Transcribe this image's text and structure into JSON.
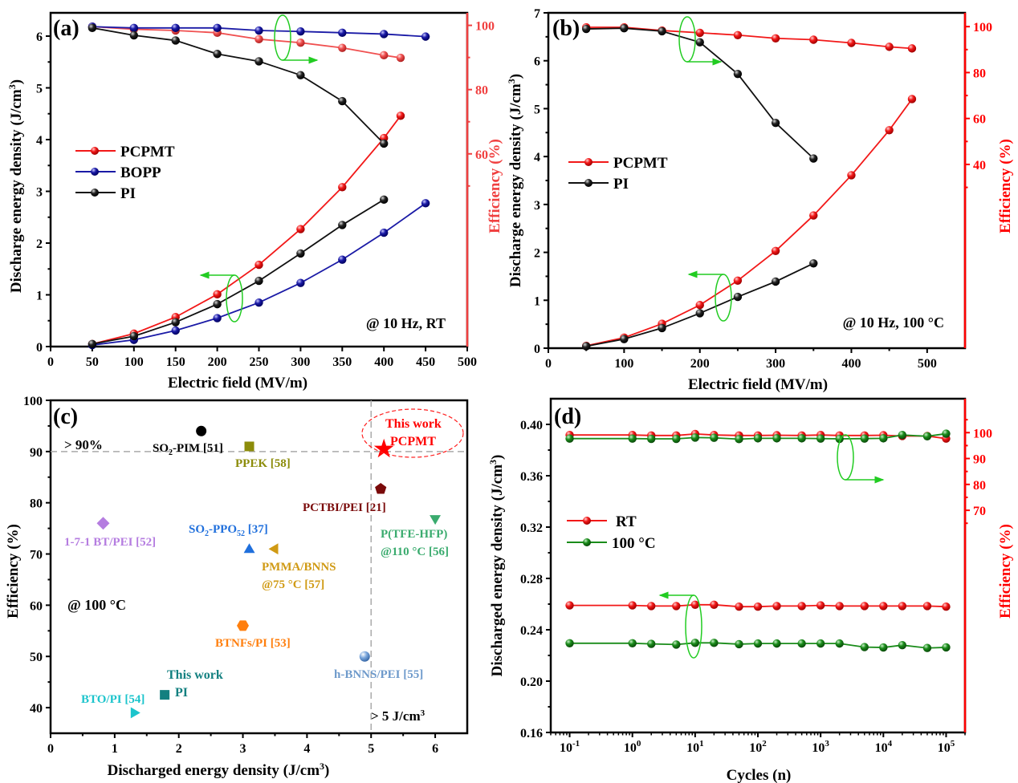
{
  "chart_data": [
    {
      "panel": "(a)",
      "type": "line",
      "xlabel": "Electric field (MV/m)",
      "ylabel": "Discharge energy density (J/cm3)",
      "ylabel_parts": [
        "Discharge energy density (J/cm",
        "3",
        ")"
      ],
      "y2label": "Efficiency (%)",
      "xlim": [
        0,
        500
      ],
      "xticks": [
        0,
        50,
        100,
        150,
        200,
        250,
        300,
        350,
        400,
        450,
        500
      ],
      "ylim": [
        0,
        6.45
      ],
      "yticks": [
        0,
        1,
        2,
        3,
        4,
        5,
        6
      ],
      "y2lim": [
        0,
        103.9
      ],
      "y2ticks": [
        60,
        80,
        100
      ],
      "annotation": "@ 10 Hz, RT",
      "legend": [
        "PCPMT",
        "BOPP",
        "PI"
      ],
      "legend_position": "middle-left",
      "series": [
        {
          "name": "PCPMT",
          "axis": "left",
          "color": "#f21818",
          "x": [
            50,
            100,
            150,
            200,
            250,
            300,
            350,
            400,
            420
          ],
          "y": [
            0.05,
            0.25,
            0.57,
            1.01,
            1.58,
            2.27,
            3.08,
            4.03,
            4.46
          ]
        },
        {
          "name": "BOPP",
          "axis": "left",
          "color": "#1a1aa6",
          "x": [
            50,
            100,
            150,
            200,
            250,
            300,
            350,
            400,
            450
          ],
          "y": [
            0.03,
            0.13,
            0.31,
            0.55,
            0.85,
            1.23,
            1.68,
            2.2,
            2.77
          ]
        },
        {
          "name": "PI",
          "axis": "left",
          "color": "#111111",
          "x": [
            50,
            100,
            150,
            200,
            250,
            300,
            350,
            400
          ],
          "y": [
            0.05,
            0.2,
            0.47,
            0.82,
            1.27,
            1.8,
            2.35,
            2.84
          ]
        },
        {
          "name": "PCPMT efficiency",
          "axis": "right",
          "color": "#f05050",
          "x": [
            50,
            100,
            150,
            200,
            250,
            300,
            350,
            400,
            420
          ],
          "y": [
            99.6,
            98.8,
            98.4,
            97.7,
            95.7,
            94.6,
            93.0,
            90.7,
            89.9
          ]
        },
        {
          "name": "BOPP efficiency",
          "axis": "right",
          "color": "#1a1aa6",
          "x": [
            50,
            100,
            150,
            200,
            250,
            300,
            350,
            400,
            450
          ],
          "y": [
            99.6,
            99.2,
            99.2,
            99.2,
            98.4,
            98.1,
            97.7,
            97.3,
            96.5
          ]
        },
        {
          "name": "PI efficiency",
          "axis": "right",
          "color": "#111111",
          "x": [
            50,
            100,
            150,
            200,
            250,
            300,
            350,
            400
          ],
          "y": [
            99.2,
            96.9,
            95.3,
            91.1,
            88.8,
            84.5,
            76.4,
            63.2
          ]
        }
      ]
    },
    {
      "panel": "(b)",
      "type": "line",
      "xlabel": "Electric field (MV/m)",
      "ylabel": "Discharge energy density (J/cm3)",
      "ylabel_parts": [
        "Discharge energy density (J/cm",
        "3",
        ")"
      ],
      "y2label": "Efficiency (%)",
      "xlim": [
        0,
        550
      ],
      "xticks": [
        0,
        100,
        200,
        300,
        400,
        500
      ],
      "ylim": [
        0,
        7
      ],
      "yticks": [
        0,
        1,
        2,
        3,
        4,
        5,
        6,
        7
      ],
      "y2lim": [
        -40,
        106
      ],
      "y2ticks": [
        40,
        60,
        80,
        100
      ],
      "annotation": "@ 10 Hz, 100 °C",
      "legend": [
        "PCPMT",
        "PI"
      ],
      "legend_position": "middle-left",
      "series": [
        {
          "name": "PCPMT",
          "axis": "left",
          "color": "#f21818",
          "x": [
            50,
            100,
            150,
            200,
            250,
            300,
            350,
            400,
            450,
            480
          ],
          "y": [
            0.05,
            0.22,
            0.51,
            0.9,
            1.41,
            2.03,
            2.77,
            3.61,
            4.55,
            5.2
          ]
        },
        {
          "name": "PI",
          "axis": "left",
          "color": "#111111",
          "x": [
            50,
            100,
            150,
            200,
            250,
            300,
            350
          ],
          "y": [
            0.04,
            0.19,
            0.42,
            0.73,
            1.07,
            1.39,
            1.77
          ]
        },
        {
          "name": "PCPMT efficiency",
          "axis": "right",
          "color": "#f21818",
          "x": [
            50,
            100,
            150,
            200,
            250,
            300,
            350,
            400,
            450,
            480
          ],
          "y": [
            99.7,
            99.7,
            98.3,
            97.3,
            96.3,
            94.9,
            94.3,
            92.9,
            91.2,
            90.5
          ]
        },
        {
          "name": "PI efficiency",
          "axis": "right",
          "color": "#111111",
          "x": [
            50,
            100,
            150,
            200,
            250,
            300,
            350
          ],
          "y": [
            99.0,
            99.3,
            98.0,
            93.2,
            79.4,
            58.1,
            42.6
          ]
        }
      ]
    },
    {
      "panel": "(c)",
      "type": "scatter",
      "xlabel": "Discharged energy density (J/cm3)",
      "xlabel_parts": [
        "Discharged energy density (J/cm",
        "3",
        ")"
      ],
      "ylabel": "Efficiency (%)",
      "xlim": [
        0,
        6.5
      ],
      "xticks": [
        0,
        1,
        2,
        3,
        4,
        5,
        6
      ],
      "ylim": [
        35,
        100
      ],
      "yticks": [
        40,
        50,
        60,
        70,
        80,
        90,
        100
      ],
      "reference_lines": {
        "x": 5,
        "y": 90
      },
      "annotations": [
        "> 90%",
        "> 5 J/cm3",
        "@ 100 °C"
      ],
      "points": [
        {
          "label": "SO2-PIM [51]",
          "x": 2.35,
          "y": 94,
          "marker": "circle",
          "color": "#000000",
          "label_color": "#000000"
        },
        {
          "label": "PPEK [58]",
          "x": 3.1,
          "y": 91,
          "marker": "square",
          "color": "#8c8c0a",
          "label_color": "#8c8c0a"
        },
        {
          "label": "This work PCPMT",
          "x": 5.2,
          "y": 90.5,
          "marker": "star",
          "color": "#ff0000",
          "label_color": "#ff0000"
        },
        {
          "label": "PCTBI/PEI [21]",
          "x": 5.15,
          "y": 82.7,
          "marker": "pentagon",
          "color": "#7a0a0a",
          "label_color": "#7a0a0a"
        },
        {
          "label": "P(TFE-HFP) @110 °C [56]",
          "x": 6.0,
          "y": 76.8,
          "marker": "triangle-down",
          "color": "#3aab6e",
          "label_color": "#3aab6e"
        },
        {
          "label": "1-7-1 BT/PEI [52]",
          "x": 0.82,
          "y": 76,
          "marker": "diamond",
          "color": "#b57de0",
          "label_color": "#b57de0"
        },
        {
          "label": "SO2-PPO52 [37]",
          "x": 3.1,
          "y": 71,
          "marker": "triangle-up",
          "color": "#1f6fdc",
          "label_color": "#1f6fdc"
        },
        {
          "label": "PMMA/BNNS @75 °C [57]",
          "x": 3.5,
          "y": 71,
          "marker": "triangle-left",
          "color": "#d09a14",
          "label_color": "#d09a14"
        },
        {
          "label": "BTNFs/PI [53]",
          "x": 3.0,
          "y": 56,
          "marker": "hexagon",
          "color": "#ff7f0e",
          "label_color": "#ff7f0e"
        },
        {
          "label": "h-BNNS/PEI [55]",
          "x": 4.9,
          "y": 50,
          "marker": "sphere",
          "color": "#5b8fd0",
          "label_color": "#6e9acb"
        },
        {
          "label": "This work PI",
          "x": 1.78,
          "y": 42.5,
          "marker": "square",
          "color": "#138080",
          "label_color": "#138080"
        },
        {
          "label": "BTO/PI [54]",
          "x": 1.3,
          "y": 39,
          "marker": "triangle-right",
          "color": "#1cc4cc",
          "label_color": "#1cc4cc"
        }
      ]
    },
    {
      "panel": "(d)",
      "type": "line",
      "xlabel": "Cycles (n)",
      "ylabel": "Discharged energy density (J/cm3)",
      "ylabel_parts": [
        "Discharged energy density (J/cm",
        "3",
        ")"
      ],
      "y2label": "Efficiency (%)",
      "xscale": "log",
      "xlim": [
        0.05,
        200000
      ],
      "xticks": [
        "10^-1",
        "10^0",
        "10^1",
        "10^2",
        "10^3",
        "10^4",
        "10^5"
      ],
      "ylim": [
        0.16,
        0.42
      ],
      "yticks": [
        0.16,
        0.2,
        0.24,
        0.28,
        0.32,
        0.36,
        0.4
      ],
      "y2lim": [
        -15.8,
        113.1
      ],
      "y2ticks": [
        70,
        80,
        90,
        100
      ],
      "legend": [
        "RT",
        "100 °C"
      ],
      "legend_position": "middle-left",
      "x": [
        0.1,
        1,
        2,
        5,
        10,
        20,
        50,
        100,
        200,
        500,
        1000,
        2000,
        5000,
        10000,
        20000,
        50000,
        100000
      ],
      "series": [
        {
          "name": "RT",
          "axis": "left",
          "color": "#f21818",
          "y": [
            0.259,
            0.259,
            0.2585,
            0.2585,
            0.2595,
            0.2595,
            0.258,
            0.258,
            0.2585,
            0.2585,
            0.259,
            0.2585,
            0.2585,
            0.2585,
            0.2585,
            0.2585,
            0.258
          ]
        },
        {
          "name": "100 °C",
          "axis": "left",
          "color": "#1a8c1a",
          "y": [
            0.2295,
            0.2295,
            0.229,
            0.2285,
            0.2298,
            0.2298,
            0.2288,
            0.2293,
            0.2293,
            0.2293,
            0.2293,
            0.2293,
            0.2265,
            0.2262,
            0.228,
            0.2258,
            0.2263
          ]
        },
        {
          "name": "RT efficiency",
          "axis": "right",
          "color": "#f21818",
          "y": [
            99.1,
            99.1,
            98.9,
            98.9,
            99.5,
            99.1,
            98.9,
            98.9,
            99.0,
            98.9,
            99.1,
            98.9,
            98.9,
            99.0,
            98.7,
            98.7,
            97.7
          ]
        },
        {
          "name": "100 °C efficiency",
          "axis": "right",
          "color": "#1a8c1a",
          "y": [
            97.7,
            97.7,
            97.6,
            97.6,
            98.1,
            98.0,
            97.5,
            97.8,
            97.8,
            97.8,
            97.7,
            97.6,
            97.7,
            97.8,
            99.1,
            98.6,
            99.6
          ]
        }
      ]
    }
  ]
}
